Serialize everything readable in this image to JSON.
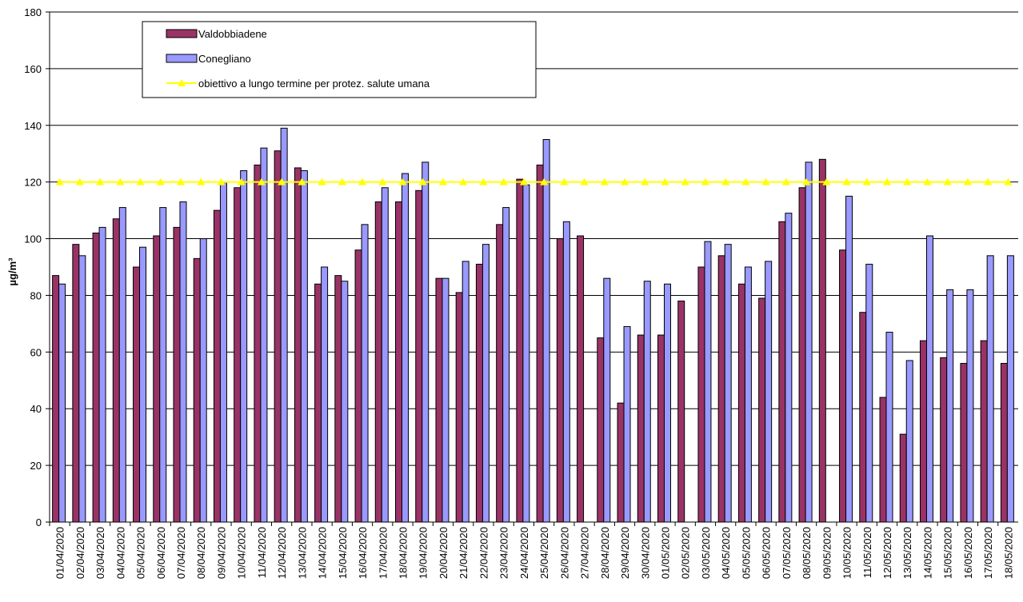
{
  "chart_data": {
    "type": "bar",
    "y_label": "µg/m³",
    "categories": [
      "01/04/2020",
      "02/04/2020",
      "03/04/2020",
      "04/04/2020",
      "05/04/2020",
      "06/04/2020",
      "07/04/2020",
      "08/04/2020",
      "09/04/2020",
      "10/04/2020",
      "11/04/2020",
      "12/04/2020",
      "13/04/2020",
      "14/04/2020",
      "15/04/2020",
      "16/04/2020",
      "17/04/2020",
      "18/04/2020",
      "19/04/2020",
      "20/04/2020",
      "21/04/2020",
      "22/04/2020",
      "23/04/2020",
      "24/04/2020",
      "25/04/2020",
      "26/04/2020",
      "27/04/2020",
      "28/04/2020",
      "29/04/2020",
      "30/04/2020",
      "01/05/2020",
      "02/05/2020",
      "03/05/2020",
      "04/05/2020",
      "05/05/2020",
      "06/05/2020",
      "07/05/2020",
      "08/05/2020",
      "09/05/2020",
      "10/05/2020",
      "11/05/2020",
      "12/05/2020",
      "13/05/2020",
      "14/05/2020",
      "15/05/2020",
      "16/05/2020",
      "17/05/2020",
      "18/05/2020"
    ],
    "series": [
      {
        "name": "Valdobbiadene",
        "color": "#993366",
        "kind": "bar",
        "values": [
          87,
          98,
          102,
          107,
          90,
          101,
          104,
          93,
          110,
          118,
          126,
          131,
          125,
          84,
          87,
          96,
          113,
          113,
          117,
          86,
          81,
          91,
          105,
          121,
          126,
          100,
          101,
          65,
          42,
          66,
          66,
          78,
          90,
          94,
          84,
          79,
          106,
          118,
          128,
          96,
          74,
          44,
          31,
          64,
          58,
          56,
          64,
          56
        ]
      },
      {
        "name": "Conegliano",
        "color": "#9999ff",
        "kind": "bar",
        "values": [
          84,
          94,
          104,
          111,
          97,
          111,
          113,
          100,
          120,
          124,
          132,
          139,
          124,
          90,
          85,
          105,
          118,
          123,
          127,
          86,
          92,
          98,
          111,
          119,
          135,
          106,
          null,
          86,
          69,
          85,
          84,
          null,
          99,
          98,
          90,
          92,
          109,
          127,
          null,
          115,
          91,
          67,
          57,
          101,
          82,
          82,
          94,
          94
        ]
      },
      {
        "name": "obiettivo a lungo termine per protez. salute umana",
        "color": "#ffff00",
        "kind": "line",
        "values": [
          120,
          120,
          120,
          120,
          120,
          120,
          120,
          120,
          120,
          120,
          120,
          120,
          120,
          120,
          120,
          120,
          120,
          120,
          120,
          120,
          120,
          120,
          120,
          120,
          120,
          120,
          120,
          120,
          120,
          120,
          120,
          120,
          120,
          120,
          120,
          120,
          120,
          120,
          120,
          120,
          120,
          120,
          120,
          120,
          120,
          120,
          120,
          120
        ]
      }
    ],
    "ylim": [
      0,
      180
    ],
    "yticks": [
      0,
      20,
      40,
      60,
      80,
      100,
      120,
      140,
      160,
      180
    ],
    "grid": true
  }
}
